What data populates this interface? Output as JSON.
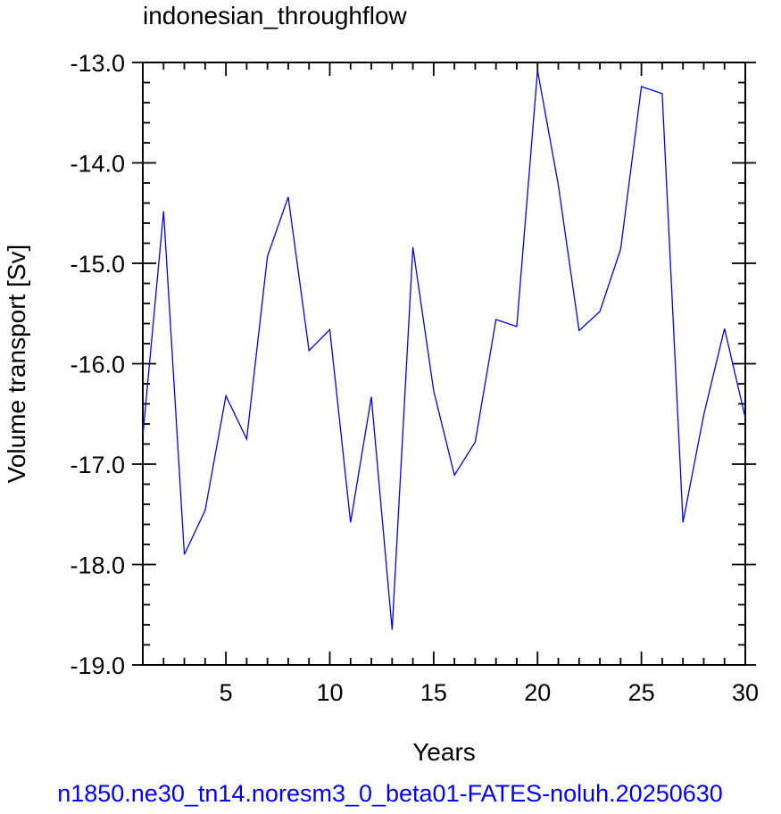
{
  "chart_data": {
    "type": "line",
    "title": "indonesian_throughflow",
    "xlabel": "Years",
    "ylabel": "Volume transport [Sv]",
    "footer": "n1850.ne30_tn14.noresm3_0_beta01-FATES-noluh.20250630",
    "xlim": [
      1,
      30
    ],
    "ylim": [
      -19.0,
      -13.0
    ],
    "x_ticks": [
      5,
      10,
      15,
      20,
      25,
      30
    ],
    "x_tick_labels": [
      "5",
      "10",
      "15",
      "20",
      "25",
      "30"
    ],
    "y_ticks": [
      -19.0,
      -18.0,
      -17.0,
      -16.0,
      -15.0,
      -14.0,
      -13.0
    ],
    "y_tick_labels": [
      "-19.0",
      "-18.0",
      "-17.0",
      "-16.0",
      "-15.0",
      "-14.0",
      "-13.0"
    ],
    "grid": false,
    "series": [
      {
        "color": "#0000ff",
        "x": [
          1,
          2,
          3,
          4,
          5,
          6,
          7,
          8,
          9,
          10,
          11,
          12,
          13,
          14,
          15,
          16,
          17,
          18,
          19,
          20,
          21,
          22,
          23,
          24,
          25,
          26,
          27,
          28,
          29,
          30
        ],
        "values": [
          -16.72,
          -14.48,
          -17.9,
          -17.46,
          -16.32,
          -16.75,
          -14.93,
          -14.34,
          -15.87,
          -15.66,
          -17.58,
          -16.33,
          -18.65,
          -14.84,
          -16.27,
          -17.11,
          -16.78,
          -15.56,
          -15.63,
          -13.08,
          -14.22,
          -15.67,
          -15.48,
          -14.86,
          -13.24,
          -13.31,
          -17.58,
          -16.51,
          -15.65,
          -16.54
        ]
      }
    ]
  }
}
